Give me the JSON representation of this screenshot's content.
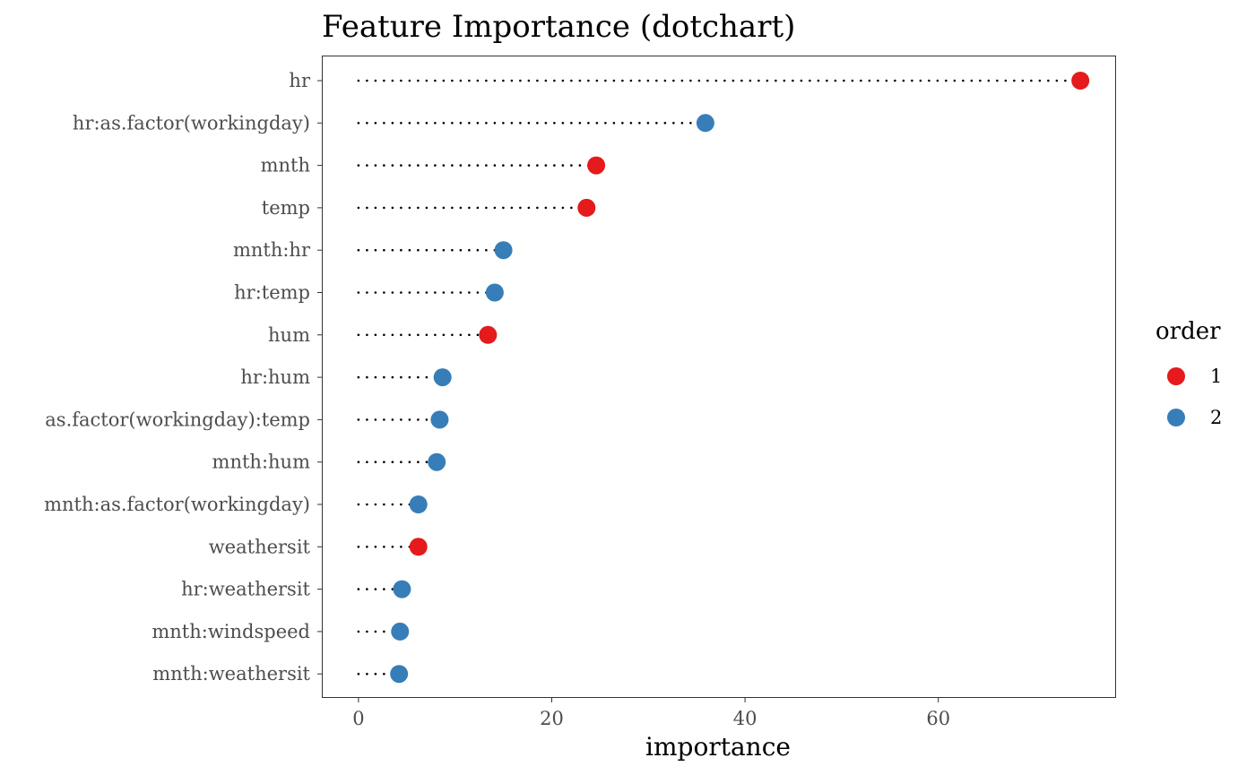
{
  "chart_data": {
    "type": "scatter",
    "title": "Feature Importance (dotchart)",
    "xlabel": "importance",
    "ylabel": "",
    "xlim": [
      -3.7,
      78.3
    ],
    "x_ticks": [
      0,
      20,
      40,
      60
    ],
    "grid": false,
    "legend_position": "right",
    "legend_title": "order",
    "legend": [
      {
        "label": "1",
        "color": "#E41A1C"
      },
      {
        "label": "2",
        "color": "#377EB8"
      }
    ],
    "categories": [
      "hr",
      "hr:as.factor(workingday)",
      "mnth",
      "temp",
      "mnth:hr",
      "hr:temp",
      "hum",
      "hr:hum",
      "as.factor(workingday):temp",
      "mnth:hum",
      "mnth:as.factor(workingday)",
      "weathersit",
      "hr:weathersit",
      "mnth:windspeed",
      "mnth:weathersit"
    ],
    "values": [
      74.7,
      35.9,
      24.6,
      23.6,
      15.0,
      14.1,
      13.4,
      8.7,
      8.4,
      8.1,
      6.2,
      6.2,
      4.5,
      4.3,
      4.2
    ],
    "order": [
      "1",
      "2",
      "1",
      "1",
      "2",
      "2",
      "1",
      "2",
      "2",
      "2",
      "2",
      "1",
      "2",
      "2",
      "2"
    ]
  }
}
